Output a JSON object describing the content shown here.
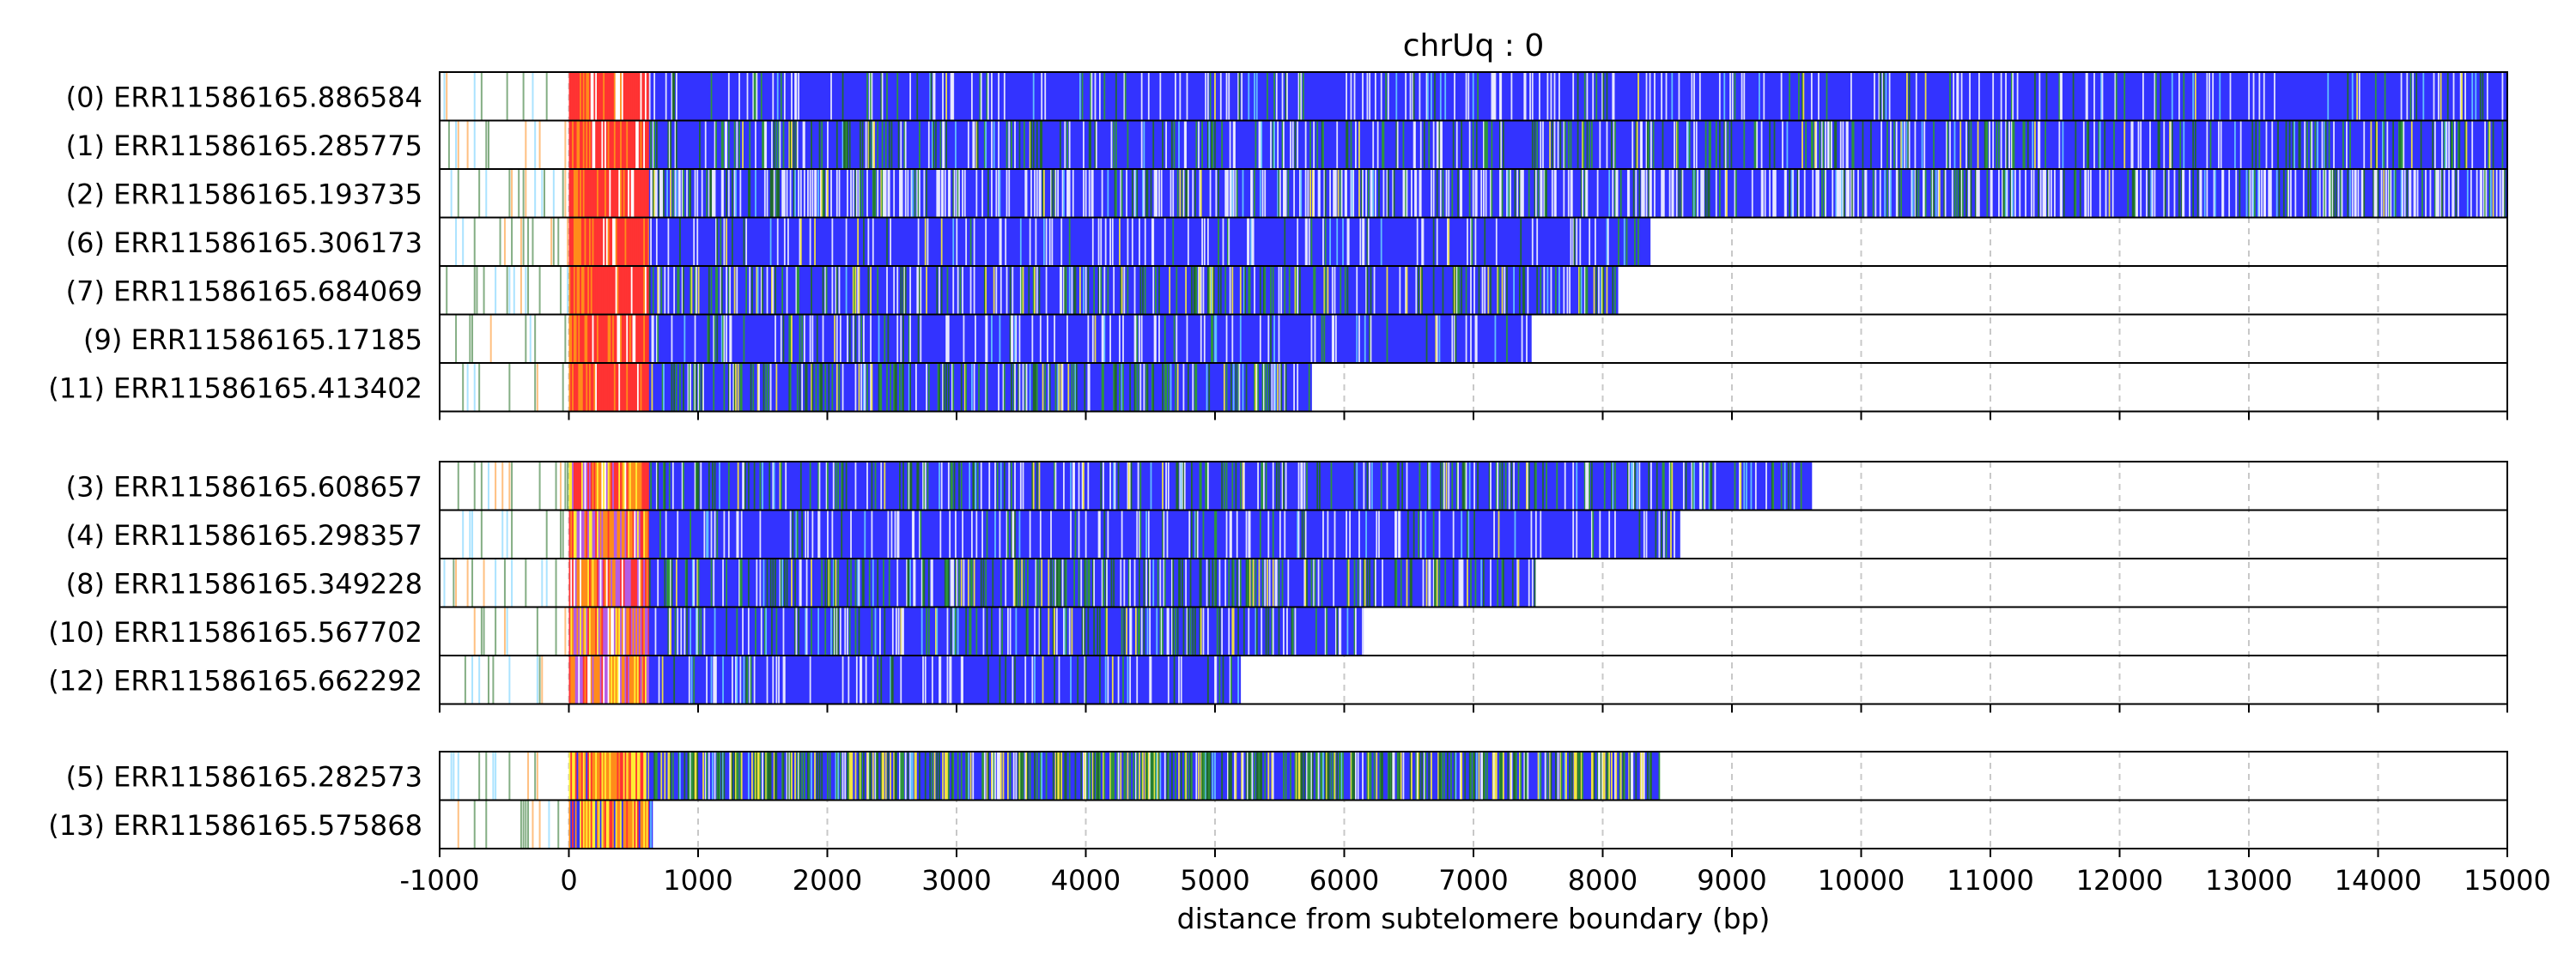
{
  "chart_data": {
    "type": "heatmap",
    "title": "chrUq : 0",
    "xlabel": "distance from subtelomere boundary (bp)",
    "xlim": [
      -1000,
      15000
    ],
    "xticks": [
      -1000,
      0,
      1000,
      2000,
      3000,
      4000,
      5000,
      6000,
      7000,
      8000,
      9000,
      10000,
      11000,
      12000,
      13000,
      14000,
      15000
    ],
    "grid": "vertical dashed",
    "colors": {
      "main_repeat": "#3333ff",
      "subtelomere_core": "#ff3333",
      "orange": "#ff8c1a",
      "yellow": "#ffee33",
      "green": "#2e9c2e",
      "purple": "#b35ce6",
      "light_blue": "#66ccff",
      "dark_green": "#1f6b1f"
    },
    "groups": [
      {
        "reads": [
          {
            "label": "(0) ERR11586165.886584",
            "end": 15000,
            "variant": "sparse"
          },
          {
            "label": "(1) ERR11586165.285775",
            "end": 15000,
            "variant": "green-early"
          },
          {
            "label": "(2) ERR11586165.193735",
            "end": 15000,
            "variant": "dense-white"
          },
          {
            "label": "(6) ERR11586165.306173",
            "end": 8370,
            "variant": "sparse"
          },
          {
            "label": "(7) ERR11586165.684069",
            "end": 8120,
            "variant": "yellow-mid"
          },
          {
            "label": "(9) ERR11586165.17185",
            "end": 7450,
            "variant": "sparse"
          },
          {
            "label": "(11) ERR11586165.413402",
            "end": 5750,
            "variant": "green-mid"
          }
        ]
      },
      {
        "reads": [
          {
            "label": "(3) ERR11586165.608657",
            "end": 9620,
            "variant": "green-early"
          },
          {
            "label": "(4) ERR11586165.298357",
            "end": 8600,
            "variant": "sparse"
          },
          {
            "label": "(8) ERR11586165.349228",
            "end": 7480,
            "variant": "green-mid"
          },
          {
            "label": "(10) ERR11586165.567702",
            "end": 6150,
            "variant": "green-early"
          },
          {
            "label": "(12) ERR11586165.662292",
            "end": 5200,
            "variant": "sparse"
          }
        ]
      },
      {
        "reads": [
          {
            "label": "(5) ERR11586165.282573",
            "end": 8440,
            "variant": "heavy-green"
          },
          {
            "label": "(13) ERR11586165.575868",
            "end": 650,
            "variant": "short"
          }
        ]
      }
    ]
  }
}
